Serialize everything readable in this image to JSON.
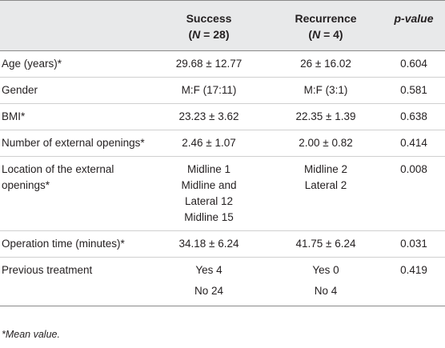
{
  "header": {
    "col1": "",
    "success_line1": "Success",
    "success_line2": "(N = 28)",
    "recurrence_line1": "Recurrence",
    "recurrence_line2": "(N = 4)",
    "pvalue": "p-value"
  },
  "rows": [
    {
      "label": "Age (years)*",
      "success": "29.68 ± 12.77",
      "recurrence": "26 ± 16.02",
      "p": "0.604"
    },
    {
      "label": "Gender",
      "success": "M:F (17:11)",
      "recurrence": "M:F (3:1)",
      "p": "0.581"
    },
    {
      "label": "BMI*",
      "success": "23.23 ± 3.62",
      "recurrence": "22.35 ± 1.39",
      "p": "0.638"
    },
    {
      "label": "Number of external openings*",
      "success": "2.46 ± 1.07",
      "recurrence": "2.00 ± 0.82",
      "p": "0.414"
    },
    {
      "label": "Location of the external openings*",
      "success_lines": [
        "Midline 1",
        "Midline and",
        "Lateral 12",
        "Midline 15"
      ],
      "recurrence_lines": [
        "Midline 2",
        "Lateral 2"
      ],
      "p": "0.008"
    },
    {
      "label": "Operation time (minutes)*",
      "success": "34.18 ± 6.24",
      "recurrence": "41.75 ± 6.24",
      "p": "0.031"
    },
    {
      "label": "Previous treatment",
      "success": "Yes 4",
      "recurrence": "Yes 0",
      "p": "0.419"
    },
    {
      "label": "",
      "success": "No 24",
      "recurrence": "No 4",
      "p": ""
    }
  ],
  "footnote": "*Mean value."
}
